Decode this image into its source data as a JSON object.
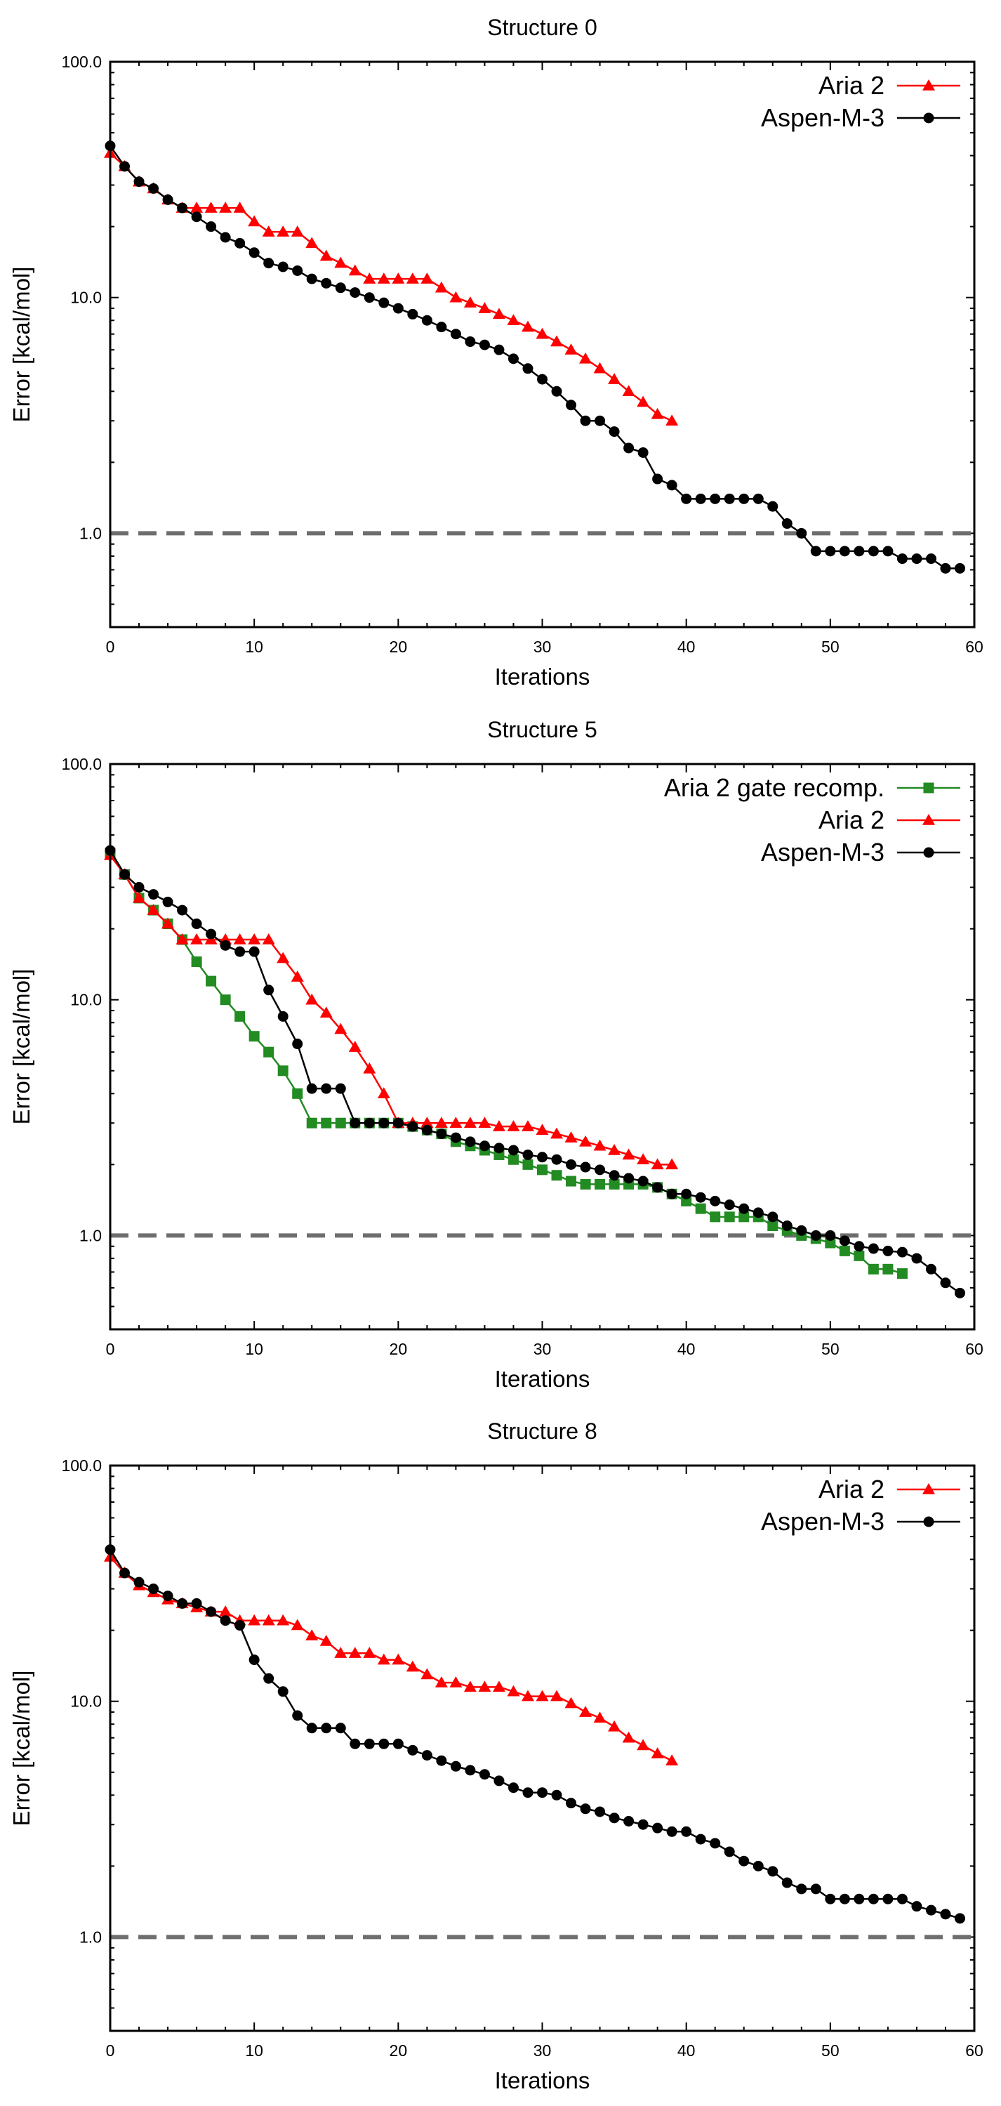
{
  "chart_data": [
    {
      "type": "line",
      "title": "Structure 0",
      "xlabel": "Iterations",
      "ylabel": "Error [kcal/mol]",
      "yscale": "log",
      "xlim": [
        0,
        60
      ],
      "ylim": [
        0.4,
        100
      ],
      "xticks": [
        0,
        10,
        20,
        30,
        40,
        50,
        60
      ],
      "xtick_labels": [
        "0",
        "10",
        "20",
        "30",
        "40",
        "50",
        "60"
      ],
      "yticks": [
        1,
        10,
        100
      ],
      "ytick_labels": [
        "1.0",
        "10.0",
        "100.0"
      ],
      "reference_line": {
        "y": 1.0,
        "style": "dashed",
        "color": "#6e6e6e"
      },
      "legend_position": "top-right",
      "series": [
        {
          "name": "Aria 2",
          "color": "#ff0000",
          "marker": "triangle",
          "x": [
            0,
            1,
            2,
            3,
            4,
            5,
            6,
            7,
            8,
            9,
            10,
            11,
            12,
            13,
            14,
            15,
            16,
            17,
            18,
            19,
            20,
            21,
            22,
            23,
            24,
            25,
            26,
            27,
            28,
            29,
            30,
            31,
            32,
            33,
            34,
            35,
            36,
            37,
            38,
            39
          ],
          "values": [
            41,
            36,
            31,
            29,
            26,
            24,
            24,
            24,
            24,
            24,
            21,
            19,
            19,
            19,
            17,
            15,
            14,
            13,
            12,
            12,
            12,
            12,
            12,
            11,
            10,
            9.5,
            9,
            8.5,
            8,
            7.5,
            7,
            6.5,
            6,
            5.5,
            5,
            4.5,
            4,
            3.6,
            3.2,
            3.0
          ]
        },
        {
          "name": "Aspen-M-3",
          "color": "#000000",
          "marker": "circle",
          "x": [
            0,
            1,
            2,
            3,
            4,
            5,
            6,
            7,
            8,
            9,
            10,
            11,
            12,
            13,
            14,
            15,
            16,
            17,
            18,
            19,
            20,
            21,
            22,
            23,
            24,
            25,
            26,
            27,
            28,
            29,
            30,
            31,
            32,
            33,
            34,
            35,
            36,
            37,
            38,
            39,
            40,
            41,
            42,
            43,
            44,
            45,
            46,
            47,
            48,
            49,
            50,
            51,
            52,
            53,
            54,
            55,
            56,
            57,
            58,
            59
          ],
          "values": [
            44,
            36,
            31,
            29,
            26,
            24,
            22,
            20,
            18,
            17,
            15.5,
            14,
            13.5,
            13,
            12,
            11.5,
            11,
            10.5,
            10,
            9.5,
            9,
            8.5,
            8,
            7.5,
            7,
            6.5,
            6.3,
            6,
            5.5,
            5,
            4.5,
            4,
            3.5,
            3,
            3,
            2.7,
            2.3,
            2.2,
            1.7,
            1.6,
            1.4,
            1.4,
            1.4,
            1.4,
            1.4,
            1.4,
            1.3,
            1.1,
            1.0,
            0.84,
            0.84,
            0.84,
            0.84,
            0.84,
            0.84,
            0.78,
            0.78,
            0.78,
            0.71,
            0.71
          ]
        }
      ]
    },
    {
      "type": "line",
      "title": "Structure 5",
      "xlabel": "Iterations",
      "ylabel": "Error [kcal/mol]",
      "yscale": "log",
      "xlim": [
        0,
        60
      ],
      "ylim": [
        0.4,
        100
      ],
      "xticks": [
        0,
        10,
        20,
        30,
        40,
        50,
        60
      ],
      "xtick_labels": [
        "0",
        "10",
        "20",
        "30",
        "40",
        "50",
        "60"
      ],
      "yticks": [
        1,
        10,
        100
      ],
      "ytick_labels": [
        "1.0",
        "10.0",
        "100.0"
      ],
      "reference_line": {
        "y": 1.0,
        "style": "dashed",
        "color": "#6e6e6e"
      },
      "legend_position": "top-right",
      "series": [
        {
          "name": "Aria 2 gate recomp.",
          "color": "#228b22",
          "marker": "square",
          "x": [
            0,
            1,
            2,
            3,
            4,
            5,
            6,
            7,
            8,
            9,
            10,
            11,
            12,
            13,
            14,
            15,
            16,
            17,
            18,
            19,
            20,
            21,
            22,
            23,
            24,
            25,
            26,
            27,
            28,
            29,
            30,
            31,
            32,
            33,
            34,
            35,
            36,
            37,
            38,
            39,
            40,
            41,
            42,
            43,
            44,
            45,
            46,
            47,
            48,
            49,
            50,
            51,
            52,
            53,
            54,
            55
          ],
          "values": [
            42,
            34,
            27,
            24,
            21,
            18,
            14.5,
            12,
            10,
            8.5,
            7,
            6,
            5,
            4,
            3.0,
            3.0,
            3.0,
            3.0,
            3.0,
            3.0,
            3.0,
            2.9,
            2.8,
            2.7,
            2.5,
            2.4,
            2.3,
            2.2,
            2.1,
            2.0,
            1.9,
            1.8,
            1.7,
            1.65,
            1.65,
            1.65,
            1.65,
            1.65,
            1.6,
            1.5,
            1.4,
            1.3,
            1.2,
            1.2,
            1.2,
            1.2,
            1.1,
            1.05,
            1.0,
            0.97,
            0.93,
            0.86,
            0.82,
            0.72,
            0.72,
            0.69
          ]
        },
        {
          "name": "Aria 2",
          "color": "#ff0000",
          "marker": "triangle",
          "x": [
            0,
            1,
            2,
            3,
            4,
            5,
            6,
            7,
            8,
            9,
            10,
            11,
            12,
            13,
            14,
            15,
            16,
            17,
            18,
            19,
            20,
            21,
            22,
            23,
            24,
            25,
            26,
            27,
            28,
            29,
            30,
            31,
            32,
            33,
            34,
            35,
            36,
            37,
            38,
            39
          ],
          "values": [
            41,
            34,
            27,
            24,
            21,
            18,
            18,
            18,
            18,
            18,
            18,
            18,
            15,
            12.5,
            10,
            8.8,
            7.5,
            6.3,
            5.1,
            4.0,
            3.0,
            3.0,
            3.0,
            3.0,
            3.0,
            3.0,
            3.0,
            2.9,
            2.9,
            2.9,
            2.8,
            2.7,
            2.6,
            2.5,
            2.4,
            2.3,
            2.2,
            2.1,
            2.0,
            2.0
          ]
        },
        {
          "name": "Aspen-M-3",
          "color": "#000000",
          "marker": "circle",
          "x": [
            0,
            1,
            2,
            3,
            4,
            5,
            6,
            7,
            8,
            9,
            10,
            11,
            12,
            13,
            14,
            15,
            16,
            17,
            18,
            19,
            20,
            21,
            22,
            23,
            24,
            25,
            26,
            27,
            28,
            29,
            30,
            31,
            32,
            33,
            34,
            35,
            36,
            37,
            38,
            39,
            40,
            41,
            42,
            43,
            44,
            45,
            46,
            47,
            48,
            49,
            50,
            51,
            52,
            53,
            54,
            55,
            56,
            57,
            58,
            59
          ],
          "values": [
            43,
            34,
            30,
            28,
            26,
            24,
            21,
            19,
            17,
            16,
            16,
            11,
            8.5,
            6.5,
            4.2,
            4.2,
            4.2,
            3.0,
            3.0,
            3.0,
            3.0,
            2.9,
            2.8,
            2.7,
            2.6,
            2.5,
            2.4,
            2.35,
            2.3,
            2.2,
            2.15,
            2.1,
            2.0,
            1.95,
            1.9,
            1.8,
            1.75,
            1.7,
            1.6,
            1.5,
            1.5,
            1.45,
            1.4,
            1.35,
            1.3,
            1.25,
            1.2,
            1.1,
            1.05,
            1.0,
            1.0,
            0.95,
            0.9,
            0.88,
            0.86,
            0.85,
            0.8,
            0.72,
            0.63,
            0.57
          ]
        }
      ]
    },
    {
      "type": "line",
      "title": "Structure 8",
      "xlabel": "Iterations",
      "ylabel": "Error [kcal/mol]",
      "yscale": "log",
      "xlim": [
        0,
        60
      ],
      "ylim": [
        0.4,
        100
      ],
      "xticks": [
        0,
        10,
        20,
        30,
        40,
        50,
        60
      ],
      "xtick_labels": [
        "0",
        "10",
        "20",
        "30",
        "40",
        "50",
        "60"
      ],
      "yticks": [
        1,
        10,
        100
      ],
      "ytick_labels": [
        "1.0",
        "10.0",
        "100.0"
      ],
      "reference_line": {
        "y": 1.0,
        "style": "dashed",
        "color": "#6e6e6e"
      },
      "legend_position": "top-right",
      "series": [
        {
          "name": "Aria 2",
          "color": "#ff0000",
          "marker": "triangle",
          "x": [
            0,
            1,
            2,
            3,
            4,
            5,
            6,
            7,
            8,
            9,
            10,
            11,
            12,
            13,
            14,
            15,
            16,
            17,
            18,
            19,
            20,
            21,
            22,
            23,
            24,
            25,
            26,
            27,
            28,
            29,
            30,
            31,
            32,
            33,
            34,
            35,
            36,
            37,
            38,
            39
          ],
          "values": [
            41,
            35,
            31,
            29,
            27,
            26,
            25,
            24,
            24,
            22,
            22,
            22,
            22,
            21,
            19,
            18,
            16,
            16,
            16,
            15,
            15,
            14,
            13,
            12,
            12,
            11.5,
            11.5,
            11.5,
            11,
            10.5,
            10.5,
            10.5,
            9.8,
            9,
            8.5,
            7.8,
            7,
            6.5,
            6,
            5.6
          ]
        },
        {
          "name": "Aspen-M-3",
          "color": "#000000",
          "marker": "circle",
          "x": [
            0,
            1,
            2,
            3,
            4,
            5,
            6,
            7,
            8,
            9,
            10,
            11,
            12,
            13,
            14,
            15,
            16,
            17,
            18,
            19,
            20,
            21,
            22,
            23,
            24,
            25,
            26,
            27,
            28,
            29,
            30,
            31,
            32,
            33,
            34,
            35,
            36,
            37,
            38,
            39,
            40,
            41,
            42,
            43,
            44,
            45,
            46,
            47,
            48,
            49,
            50,
            51,
            52,
            53,
            54,
            55,
            56,
            57,
            58,
            59
          ],
          "values": [
            44,
            35,
            32,
            30,
            28,
            26,
            26,
            24,
            22,
            21,
            15,
            12.5,
            11,
            8.7,
            7.7,
            7.7,
            7.7,
            6.6,
            6.6,
            6.6,
            6.6,
            6.2,
            5.9,
            5.6,
            5.3,
            5.1,
            4.9,
            4.6,
            4.3,
            4.1,
            4.1,
            4.0,
            3.7,
            3.5,
            3.4,
            3.2,
            3.1,
            3.0,
            2.9,
            2.8,
            2.8,
            2.6,
            2.5,
            2.3,
            2.1,
            2.0,
            1.9,
            1.7,
            1.6,
            1.6,
            1.45,
            1.45,
            1.45,
            1.45,
            1.45,
            1.45,
            1.35,
            1.3,
            1.25,
            1.2
          ]
        }
      ]
    }
  ]
}
